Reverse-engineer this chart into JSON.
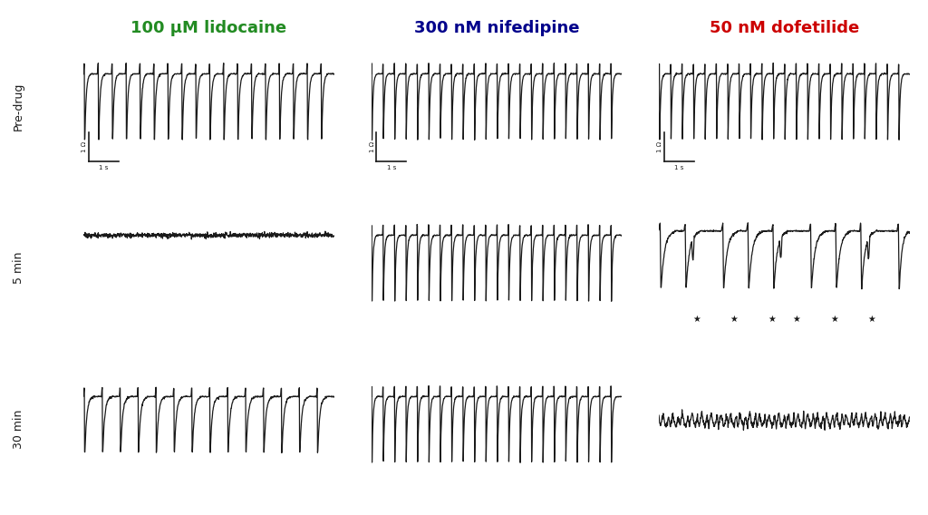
{
  "title_lidocaine": "100 μM lidocaine",
  "title_nifedipine": "300 nM nifedipine",
  "title_dofetilide": "50 nM dofetilide",
  "title_lidocaine_color": "#228B22",
  "title_nifedipine_color": "#00008B",
  "title_dofetilide_color": "#CC0000",
  "row_labels": [
    "Pre-drug",
    "5 min",
    "30 min"
  ],
  "background_color": "#ffffff",
  "trace_color": "#1a1a1a",
  "label_fontsize": 13,
  "row_label_fontsize": 9,
  "scalebar_label_fontsize": 6
}
